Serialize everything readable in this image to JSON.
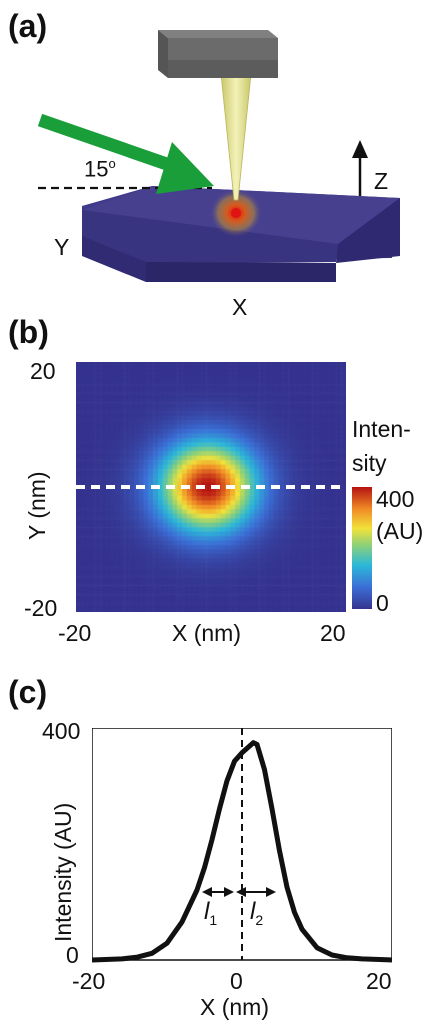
{
  "panel_a": {
    "label": "(a)",
    "angle_label": "15",
    "angle_unit": "o",
    "axis_y": "Y",
    "axis_x": "X",
    "axis_z": "Z",
    "colors": {
      "substrate_top": "#3f3a8a",
      "substrate_side": "#2e2970",
      "beam": "#1a9e3a",
      "tip": "#e6e48a",
      "cantilever": "#6b6b6b",
      "spot": "#d61a1a"
    }
  },
  "panel_b": {
    "label": "(b)",
    "colorbar": {
      "title_line1": "Inten-",
      "title_line2": "sity",
      "max_label": "400",
      "unit_label": "(AU)",
      "min_label": "0",
      "colormap": "jet"
    },
    "chart_data": {
      "type": "heatmap",
      "xlabel": "X (nm)",
      "ylabel": "Y (nm)",
      "xlim": [
        -20,
        20
      ],
      "ylim": [
        -20,
        20
      ],
      "x_ticks": [
        "-20",
        "20"
      ],
      "y_ticks": [
        "20",
        "-20"
      ],
      "clim": [
        0,
        400
      ],
      "spot_center": [
        -0.5,
        0
      ],
      "spot_width_nm": 5,
      "dashed_line_y": 0
    }
  },
  "panel_c": {
    "label": "(c)",
    "annotation_l1": "l",
    "annotation_l1_sub": "1",
    "annotation_l2": "l",
    "annotation_l2_sub": "2",
    "chart_data": {
      "type": "line",
      "xlabel": "X (nm)",
      "ylabel": "Intensity (AU)",
      "xlim": [
        -20,
        20
      ],
      "ylim": [
        0,
        400
      ],
      "x_ticks": [
        "-20",
        "0",
        "20"
      ],
      "y_ticks": [
        "0",
        "400"
      ],
      "x": [
        -20,
        -16,
        -14,
        -12,
        -10,
        -8,
        -6,
        -5,
        -4,
        -3,
        -2,
        -1,
        0,
        1,
        1.5,
        2,
        3,
        4,
        5,
        6,
        7,
        8,
        10,
        12,
        14,
        16,
        20
      ],
      "y": [
        0,
        2,
        5,
        12,
        30,
        68,
        125,
        165,
        215,
        270,
        320,
        355,
        370,
        382,
        388,
        385,
        340,
        270,
        195,
        130,
        85,
        55,
        22,
        9,
        4,
        2,
        0
      ],
      "dashed_line_x": 0
    }
  }
}
